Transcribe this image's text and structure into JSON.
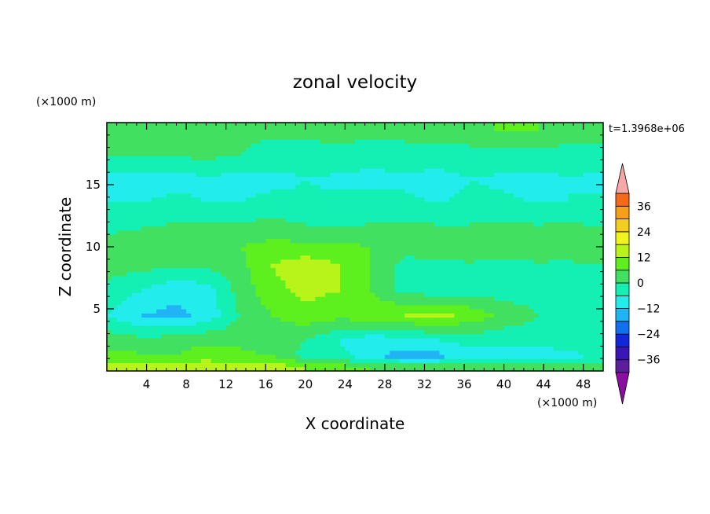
{
  "chart_data": {
    "type": "heatmap",
    "title": "zonal velocity",
    "xlabel": "X coordinate",
    "ylabel": "Z coordinate",
    "x_unit": "(×1000 m)",
    "y_unit": "(×1000 m)",
    "time_label": "t=1.3968e+06",
    "xlim": [
      0,
      50
    ],
    "ylim": [
      0,
      20
    ],
    "x_ticks": [
      4,
      8,
      12,
      16,
      20,
      24,
      28,
      32,
      36,
      40,
      44,
      48
    ],
    "y_ticks": [
      5,
      10,
      15
    ],
    "colorbar": {
      "levels": [
        -42,
        -36,
        -30,
        -24,
        -18,
        -12,
        -6,
        0,
        6,
        12,
        18,
        24,
        30,
        36,
        42
      ],
      "labels": [
        "36",
        "24",
        "12",
        "0",
        "−12",
        "−24",
        "−36"
      ],
      "label_values": [
        36,
        24,
        12,
        0,
        -12,
        -24,
        -36
      ],
      "colors": [
        "#5a1e9e",
        "#3a16b6",
        "#1226dc",
        "#1070f0",
        "#21b4f4",
        "#22ecec",
        "#14f0b4",
        "#42e060",
        "#5ef01e",
        "#b8f41a",
        "#f0f41e",
        "#f2ce1e",
        "#f6a01a",
        "#f46a1a",
        "#ee2e1e"
      ],
      "under_color": "#8a0fa0",
      "over_color": "#f4a8a8"
    },
    "bands": [
      {
        "z": 0.4,
        "values": [
          15,
          15,
          15,
          16,
          15,
          14,
          12,
          8,
          6,
          4,
          3,
          4,
          3,
          3,
          4,
          2
        ]
      },
      {
        "z": 1.2,
        "values": [
          8,
          7,
          6,
          9,
          8,
          6,
          -2,
          -4,
          -10,
          -16,
          -14,
          -8,
          -12,
          -10,
          -8,
          -4
        ]
      },
      {
        "z": 2.5,
        "values": [
          4,
          2,
          3,
          5,
          4,
          2,
          0,
          -6,
          -10,
          -8,
          -6,
          -4,
          -4,
          -3,
          -3,
          -2
        ]
      },
      {
        "z": 4.5,
        "values": [
          -6,
          -12,
          -14,
          -10,
          0,
          6,
          10,
          8,
          10,
          12,
          14,
          10,
          4,
          0,
          -2,
          -2
        ]
      },
      {
        "z": 6.5,
        "values": [
          -2,
          -6,
          -10,
          -9,
          2,
          10,
          14,
          12,
          6,
          -2,
          -3,
          -2,
          -3,
          -2,
          -3,
          -2
        ]
      },
      {
        "z": 8.5,
        "values": [
          3,
          2,
          0,
          1,
          4,
          12,
          16,
          12,
          6,
          -2,
          -2,
          -1,
          -2,
          -1,
          -2,
          0
        ]
      },
      {
        "z": 10.0,
        "values": [
          4,
          6,
          4,
          6,
          6,
          8,
          8,
          8,
          6,
          2,
          4,
          4,
          4,
          4,
          6,
          5
        ]
      },
      {
        "z": 11.5,
        "values": [
          -2,
          0,
          1,
          2,
          2,
          3,
          1,
          0,
          1,
          2,
          1,
          1,
          2,
          1,
          2,
          0
        ]
      },
      {
        "z": 13.5,
        "values": [
          -6,
          -6,
          -4,
          -6,
          -6,
          -4,
          -5,
          -5,
          -4,
          -5,
          -6,
          -5,
          -5,
          -6,
          -6,
          -5
        ]
      },
      {
        "z": 15.5,
        "values": [
          -8,
          -10,
          -9,
          -7,
          -8,
          -8,
          -6,
          -7,
          -8,
          -7,
          -8,
          -6,
          -7,
          -8,
          -6,
          -8
        ]
      },
      {
        "z": 17.5,
        "values": [
          0,
          2,
          1,
          2,
          0,
          -2,
          -3,
          -2,
          -3,
          -2,
          -3,
          -2,
          -3,
          -2,
          -2,
          -1
        ]
      },
      {
        "z": 19.5,
        "values": [
          2,
          2,
          4,
          3,
          2,
          1,
          2,
          3,
          2,
          2,
          3,
          4,
          7,
          6,
          3,
          2
        ]
      }
    ]
  }
}
